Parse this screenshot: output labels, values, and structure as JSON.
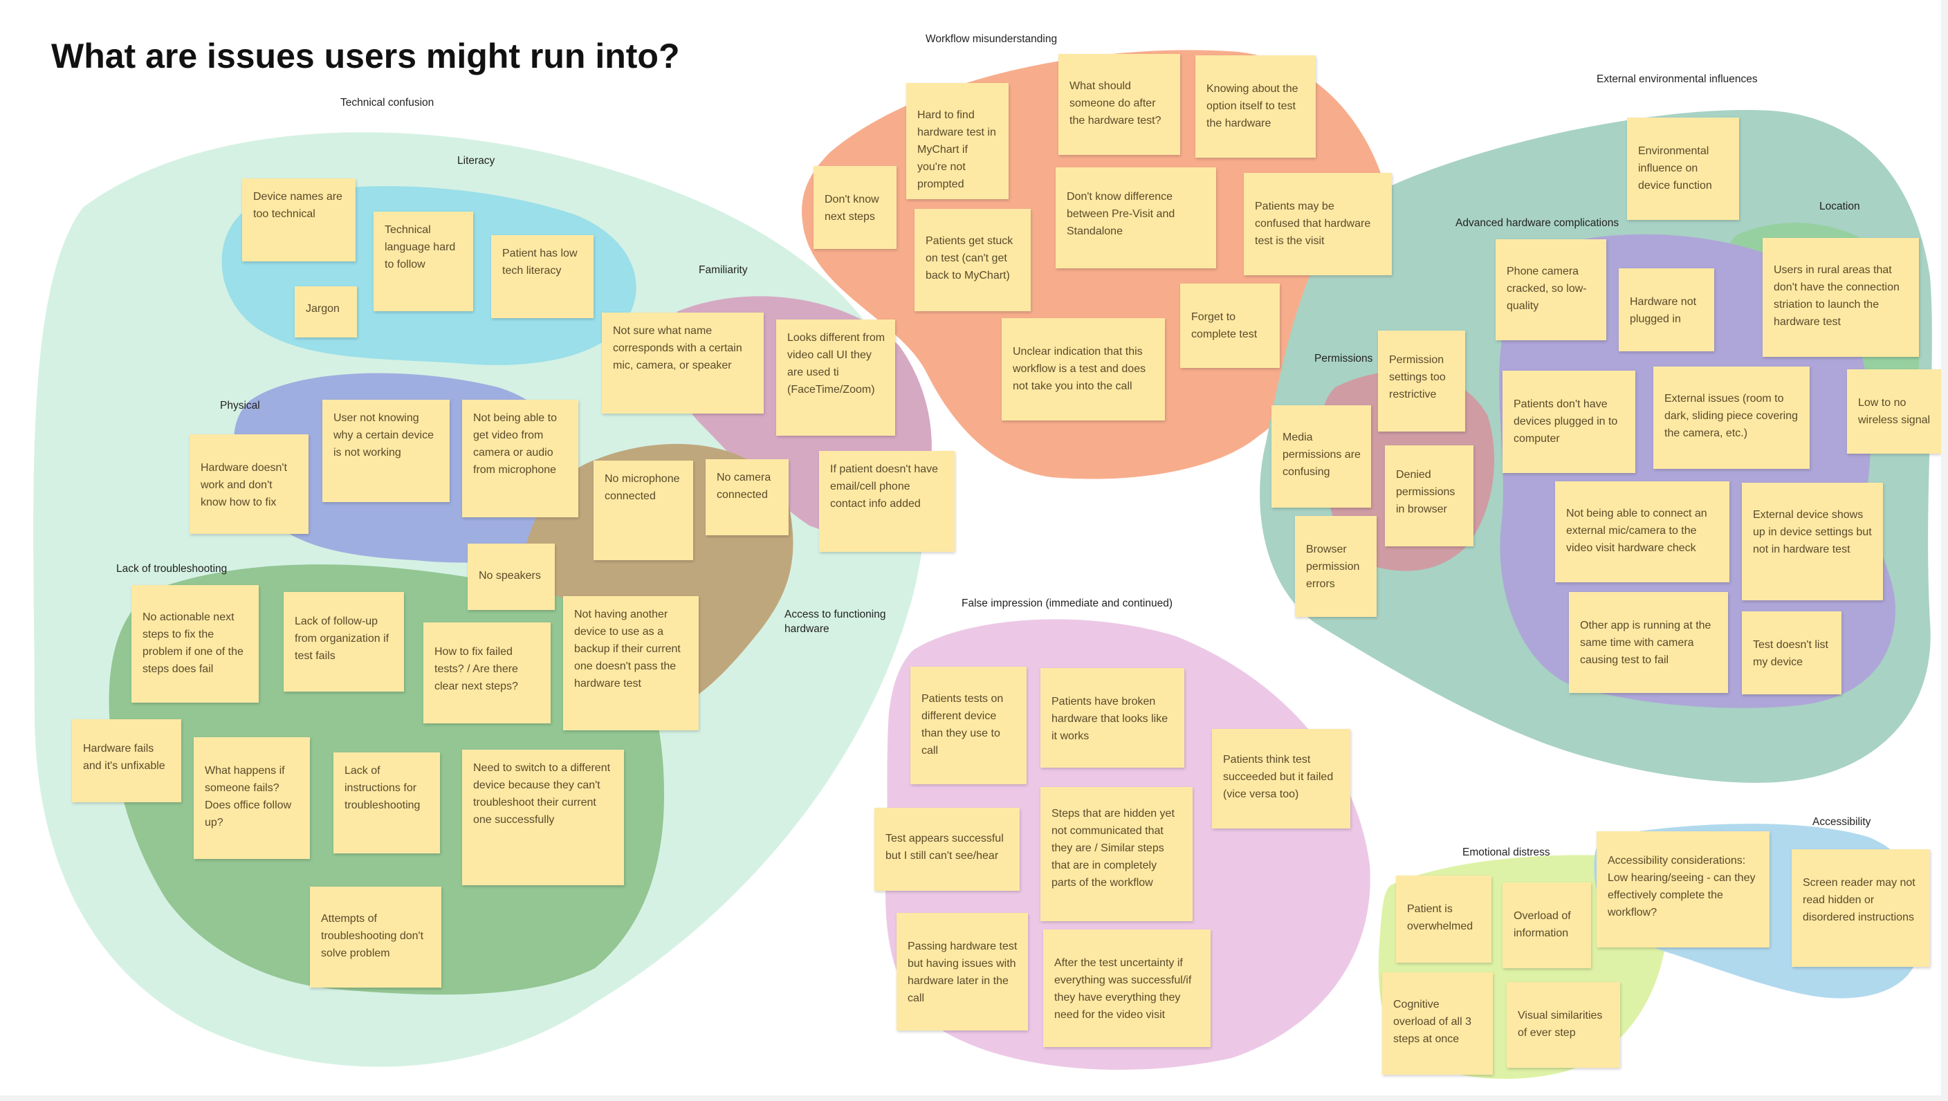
{
  "title": "What are issues users might run into?",
  "colors": {
    "note": "#fde9a4",
    "technical_confusion": "#d5f1e4",
    "literacy": "#9adfe9",
    "physical": "#9faee0",
    "familiarity": "#d6a9c3",
    "access_hardware": "#bfa77d",
    "lack_troubleshooting": "#93c693",
    "workflow": "#f7ad8c",
    "external": "#a8d2c4",
    "advanced_hardware": "#aea6d8",
    "location": "#96d0a0",
    "permissions": "#cf9ca3",
    "false_impression": "#ecc8e6",
    "emotional": "#ddf2a6",
    "accessibility": "#b1d9ee"
  },
  "labels": {
    "technical_confusion": "Technical confusion",
    "literacy": "Literacy",
    "familiarity": "Familiarity",
    "physical": "Physical",
    "lack_troubleshooting": "Lack of troubleshooting",
    "access_hardware": "Access to functioning hardware",
    "workflow": "Workflow misunderstanding",
    "external": "External environmental influences",
    "location": "Location",
    "advanced_hardware": "Advanced hardware complications",
    "permissions": "Permissions",
    "false_impression": "False impression (immediate and continued)",
    "emotional": "Emotional distress",
    "accessibility": "Accessibility"
  },
  "notes": {
    "lit1": "Device names are too technical",
    "lit2": "Technical language hard to follow",
    "lit3": "Patient has low tech literacy",
    "lit4": "Jargon",
    "fam1": "Not sure what name corresponds with a certain mic, camera, or speaker",
    "fam2": "Looks different from video call UI they are used ti (FaceTime/Zoom)",
    "fam3": "If patient doesn't have email/cell phone contact info added",
    "phy1": "Hardware doesn't work and don't know how to fix",
    "phy2": "User not knowing why a certain device is not working",
    "phy3": "Not being able to get video from camera or audio from microphone",
    "acc1": "No microphone connected",
    "acc2": "No camera connected",
    "acc3": "No speakers",
    "acc4": "Not having another device to use as a backup if their current one doesn't pass the hardware test",
    "tr1": "No actionable next steps to fix the problem if one of the steps does fail",
    "tr2": "Lack of follow-up from organization if test fails",
    "tr3": "How to fix failed tests? / Are there clear next steps?",
    "tr4": "Hardware fails and it's unfixable",
    "tr5": "What happens if someone fails? Does office follow up?",
    "tr6": "Lack of instructions for troubleshooting",
    "tr7": "Need to switch  to a different device because they can't troubleshoot their current one successfully",
    "tr8": "Attempts of troubleshooting don't solve problem",
    "wf1": "Hard to find hardware test in MyChart if you're not prompted",
    "wf2": "What should someone do after the hardware test?",
    "wf3": "Knowing about the option itself to test the hardware",
    "wf4": "Don't know next steps",
    "wf5": "Patients get stuck on test (can't get back to MyChart)",
    "wf6": "Don't know difference between Pre-Visit and Standalone",
    "wf7": "Patients may be confused that hardware test is the visit",
    "wf8": "Forget to complete test",
    "wf9": "Unclear indication that this workflow is a test and does not take you into the call",
    "ext1": "Environmental influence on device function",
    "ext2": "Users in rural areas that don't have the connection striation to launch the hardware test",
    "ext3": "Low to no wireless signal",
    "adv1": "Phone camera cracked, so low-quality",
    "adv2": "Hardware not plugged in",
    "adv3": "Patients don't have devices plugged in to computer",
    "adv4": "External issues (room to dark, sliding piece covering the camera, etc.)",
    "adv5": "Not being able to connect an external mic/camera to the video visit hardware check",
    "adv6": "External device shows up in device settings but not in hardware test",
    "adv7": "Other app is running at the same time with camera causing test to fail",
    "adv8": "Test doesn't list my device",
    "per1": "Permission settings too restrictive",
    "per2": "Media permissions are confusing",
    "per3": "Denied permissions in browser",
    "per4": "Browser permission errors",
    "fi1": "Patients tests on different device than they use to call",
    "fi2": "Patients have broken hardware that looks like it works",
    "fi3": "Patients think test succeeded but it failed (vice versa too)",
    "fi4": "Test appears successful but I still can't see/hear",
    "fi5": "Steps that are hidden yet not communicated that they are / Similar steps that are in completely parts of the workflow",
    "fi6": "Passing hardware test but having issues with hardware later in the call",
    "fi7": "After the test uncertainty if everything was successful/if they have everything they need for the video visit",
    "em1": "Patient is overwhelmed",
    "em2": "Overload of information",
    "em3": "Cognitive overload of all 3 steps at once",
    "em4": "Visual similarities of ever step",
    "ac1": "Accessibility considerations: Low hearing/seeing - can they effectively complete the workflow?",
    "ac2": "Screen reader may not read hidden or disordered instructions"
  }
}
